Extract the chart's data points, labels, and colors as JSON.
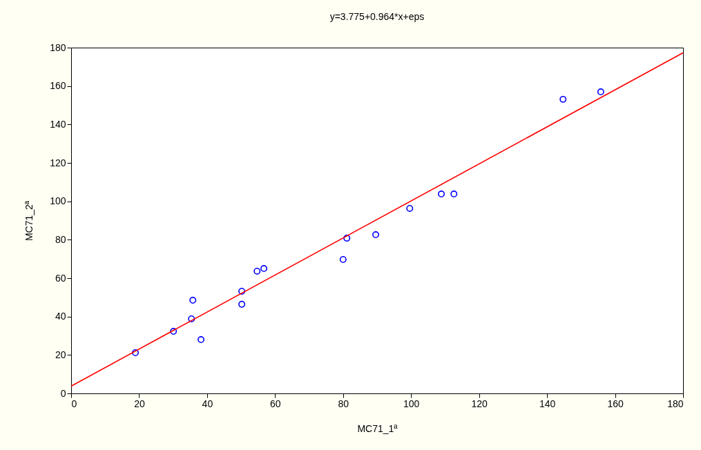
{
  "chart_data": {
    "type": "scatter",
    "title": "y=3.775+0.964*x+eps",
    "xlabel": "MC71_1ª",
    "ylabel": "MC71_2ª",
    "xlim": [
      0,
      180
    ],
    "ylim": [
      0,
      180
    ],
    "xticks": [
      0,
      20,
      40,
      60,
      80,
      100,
      120,
      140,
      160,
      180
    ],
    "yticks": [
      0,
      20,
      40,
      60,
      80,
      100,
      120,
      140,
      160,
      180
    ],
    "grid": false,
    "series": [
      {
        "marker": "circle",
        "color": "#0000ff",
        "x": [
          18.9,
          30.1,
          35.4,
          35.8,
          38.2,
          50.2,
          50.2,
          54.7,
          56.7,
          80.0,
          81.1,
          89.6,
          99.6,
          108.9,
          112.6,
          144.7,
          155.8
        ],
        "values": [
          21.2,
          32.3,
          38.8,
          48.5,
          28.0,
          53.2,
          46.4,
          63.6,
          65.0,
          69.7,
          80.8,
          82.6,
          96.3,
          103.8,
          103.8,
          153.1,
          157.0
        ]
      },
      {
        "type": "line",
        "color": "#ff0000",
        "line_style": "solid",
        "x": [
          0,
          180
        ],
        "values": [
          3.8,
          177.3
        ]
      }
    ]
  }
}
